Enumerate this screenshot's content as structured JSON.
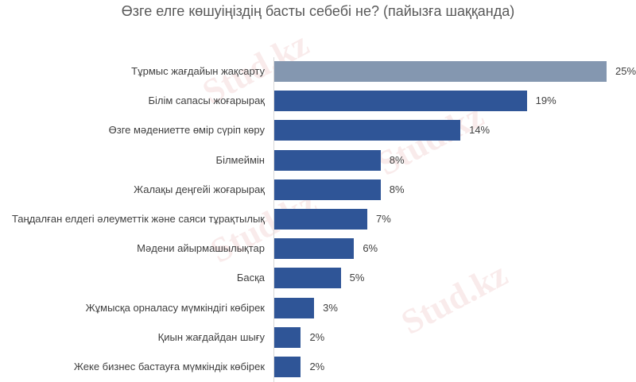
{
  "chart_data": {
    "type": "bar",
    "orientation": "horizontal",
    "title": "Өзге елге көшуіңіздің басты себебі не? (пайызға шаққанда)",
    "xlabel": "",
    "ylabel": "",
    "grid": false,
    "legend": null,
    "unit": "%",
    "categories": [
      "Тұрмыс жағдайын жақсарту",
      "Білім сапасы жоғарырақ",
      "Өзге мәдениетте өмір сүріп көру",
      "Білмеймін",
      "Жалақы деңгейі жоғарырақ",
      "Таңдалған елдегі әлеуметтік және саяси тұрақтылық",
      "Мәдени айырмашылықтар",
      "Басқа",
      "Жұмысқа орналасу мүмкіндігі көбірек",
      "Қиын жағдайдан шығу",
      "Жеке бизнес бастауға мүмкіндік көбірек"
    ],
    "values": [
      25,
      19,
      14,
      8,
      8,
      7,
      6,
      5,
      3,
      2,
      2
    ],
    "value_labels": [
      "25%",
      "19%",
      "14%",
      "8%",
      "8%",
      "7%",
      "6%",
      "5%",
      "3%",
      "2%",
      "2%"
    ],
    "highlight_index": 0,
    "colors": {
      "bar": "#2f5597",
      "highlight": "#8497b0"
    }
  },
  "watermark": "Stud.kz"
}
